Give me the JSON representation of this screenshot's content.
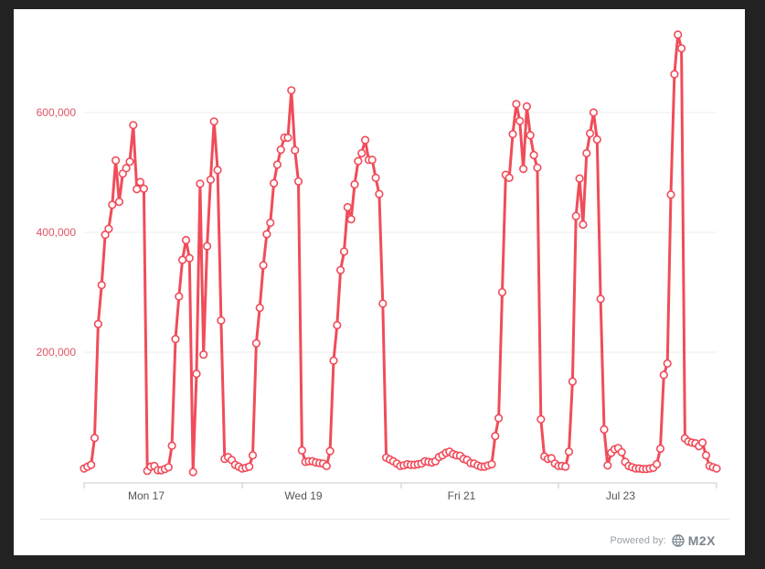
{
  "chart_data": {
    "type": "line",
    "title": "",
    "xlabel": "",
    "ylabel": "",
    "x_tick_labels": [
      "Mon 17",
      "Wed 19",
      "Fri 21",
      "Jul 23"
    ],
    "y_tick_labels": [
      "200,000",
      "400,000",
      "600,000"
    ],
    "y_ticks": [
      200000,
      400000,
      600000
    ],
    "ylim": [
      0,
      700000
    ],
    "grid": true,
    "legend": "none",
    "series": [
      {
        "color": "#f04c5a",
        "values": [
          6000,
          9000,
          12000,
          57000,
          247000,
          312000,
          396000,
          406000,
          446000,
          520000,
          451000,
          498000,
          507000,
          518000,
          579000,
          472000,
          484000,
          473000,
          2000,
          9000,
          10000,
          3000,
          3000,
          5000,
          8000,
          44000,
          222000,
          293000,
          354000,
          387000,
          357000,
          0,
          164000,
          481000,
          196000,
          377000,
          488000,
          585000,
          504000,
          253000,
          22000,
          25000,
          20000,
          12000,
          9000,
          6000,
          7000,
          9000,
          28000,
          215000,
          274000,
          345000,
          397000,
          416000,
          482000,
          513000,
          538000,
          558000,
          558000,
          637000,
          537000,
          485000,
          36000,
          17000,
          18000,
          18000,
          16000,
          15000,
          14000,
          10000,
          35000,
          186000,
          245000,
          337000,
          368000,
          442000,
          422000,
          480000,
          519000,
          532000,
          554000,
          521000,
          521000,
          491000,
          464000,
          281000,
          24000,
          21000,
          18000,
          14000,
          10000,
          11000,
          13000,
          12000,
          12000,
          13000,
          14000,
          18000,
          17000,
          16000,
          18000,
          25000,
          28000,
          32000,
          34000,
          30000,
          28000,
          27000,
          22000,
          20000,
          15000,
          14000,
          11000,
          9000,
          9000,
          11000,
          13000,
          60000,
          90000,
          300000,
          496000,
          491000,
          564000,
          614000,
          586000,
          506000,
          610000,
          562000,
          529000,
          508000,
          88000,
          26000,
          22000,
          23000,
          14000,
          10000,
          10000,
          9000,
          34000,
          151000,
          427000,
          490000,
          413000,
          532000,
          565000,
          600000,
          555000,
          289000,
          71000,
          11000,
          32000,
          38000,
          40000,
          33000,
          17000,
          10000,
          8000,
          6000,
          6000,
          5000,
          5000,
          6000,
          7000,
          13000,
          39000,
          162000,
          181000,
          463000,
          664000,
          730000,
          707000,
          56000,
          51000,
          49000,
          48000,
          43000,
          49000,
          28000,
          10000,
          8000,
          6000
        ]
      }
    ]
  },
  "footer": {
    "powered_by": "Powered by:",
    "brand": "M2X"
  }
}
